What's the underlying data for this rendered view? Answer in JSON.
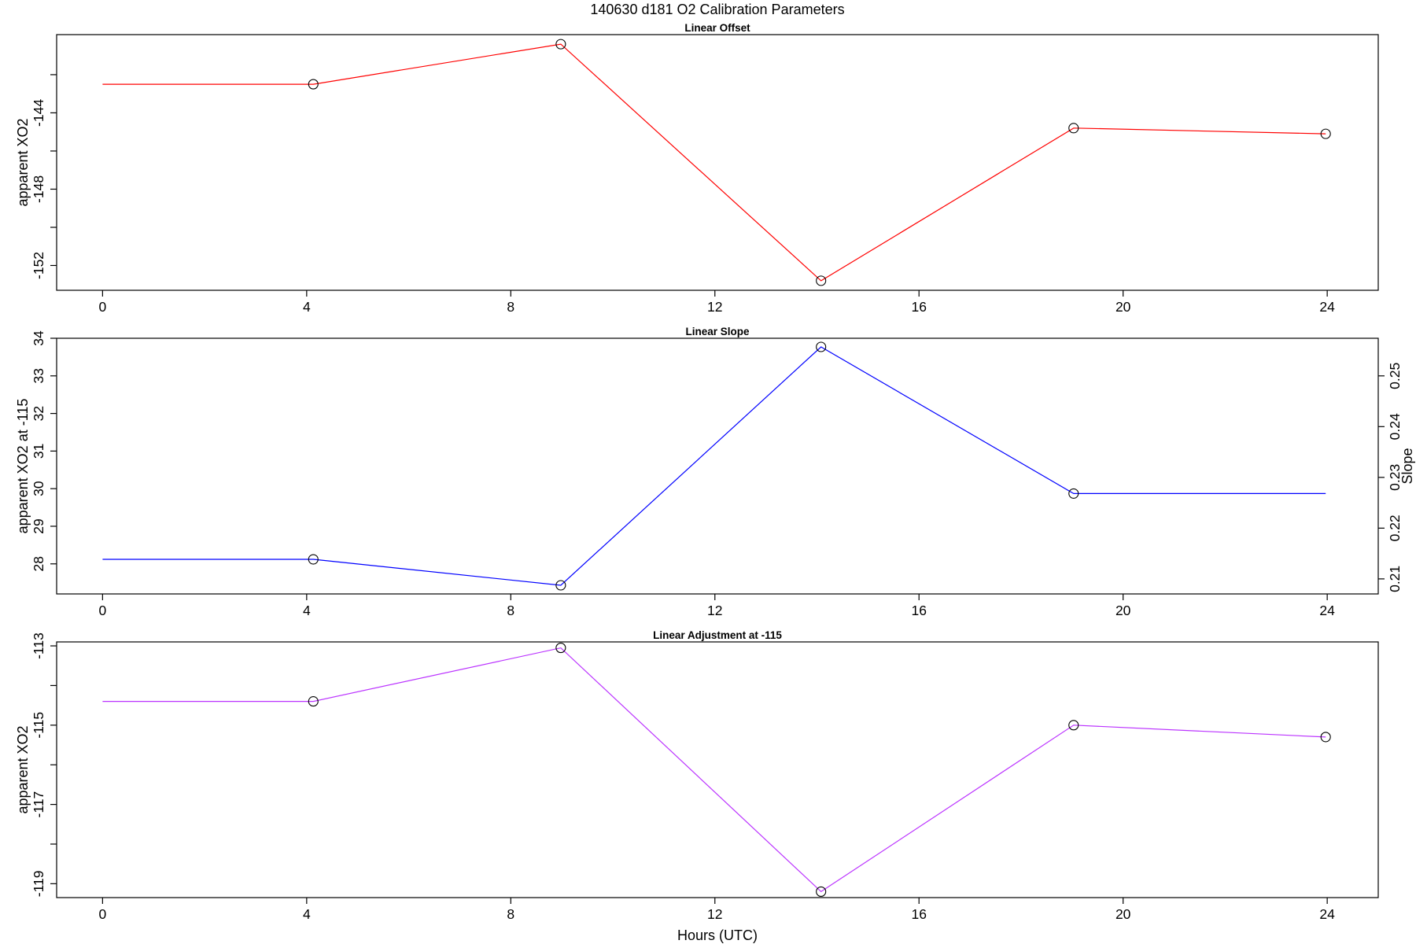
{
  "title": "140630   d181   O2 Calibration Parameters",
  "xlabel": "Hours (UTC)",
  "chart_data": [
    {
      "type": "line",
      "title": "Linear Offset",
      "ylabel": "apparent XO2",
      "xlim": [
        -0.9,
        25.0
      ],
      "ylim": [
        -153.3,
        -139.9
      ],
      "xticks": [
        0,
        4,
        8,
        12,
        16,
        20,
        24
      ],
      "yticks": [
        -152,
        -148,
        -144
      ],
      "ytick_labels": [
        "-152",
        "-148",
        "-144"
      ],
      "yticks_minor": [
        -150,
        -146,
        -142
      ],
      "color": "#ff0000",
      "x": [
        0,
        4.13,
        8.98,
        14.08,
        19.03,
        23.97
      ],
      "y": [
        -142.5,
        -142.5,
        -140.4,
        -152.8,
        -144.8,
        -145.1
      ],
      "markers": [
        false,
        true,
        true,
        true,
        true,
        true
      ]
    },
    {
      "type": "line",
      "title": "Linear Slope",
      "ylabel": "apparent XO2 at -115",
      "ylabel_right": "Slope",
      "xlim": [
        -0.9,
        25.0
      ],
      "ylim": [
        27.2,
        34.0
      ],
      "xticks": [
        0,
        4,
        8,
        12,
        16,
        20,
        24
      ],
      "yticks": [
        28,
        29,
        30,
        31,
        32,
        33,
        34
      ],
      "ytick_labels": [
        "28",
        "29",
        "30",
        "31",
        "32",
        "33",
        "34"
      ],
      "yticks_right": [
        0.21,
        0.22,
        0.23,
        0.24,
        0.25
      ],
      "yticks_right_labels": [
        "0.21",
        "0.22",
        "0.23",
        "0.24",
        "0.25"
      ],
      "yticks_right_pos": [
        27.6,
        28.95,
        30.3,
        31.65,
        33.0
      ],
      "color": "#0000ff",
      "x": [
        0,
        4.13,
        8.98,
        14.08,
        19.03,
        23.97
      ],
      "y": [
        28.12,
        28.12,
        27.43,
        33.77,
        29.87,
        29.87
      ],
      "markers": [
        false,
        true,
        true,
        true,
        true,
        false
      ]
    },
    {
      "type": "line",
      "title": "Linear Adjustment at -115",
      "ylabel": "apparent XO2",
      "xlim": [
        -0.9,
        25.0
      ],
      "ylim": [
        -119.35,
        -112.9
      ],
      "xticks": [
        0,
        4,
        8,
        12,
        16,
        20,
        24
      ],
      "yticks": [
        -119,
        -117,
        -115,
        -113
      ],
      "ytick_labels": [
        "-119",
        "-117",
        "-115",
        "-113"
      ],
      "yticks_minor": [
        -118,
        -116,
        -114
      ],
      "color": "#bb33ff",
      "x": [
        0,
        4.13,
        8.98,
        14.08,
        19.03,
        23.97
      ],
      "y": [
        -114.4,
        -114.4,
        -113.05,
        -119.2,
        -115.0,
        -115.3
      ],
      "markers": [
        false,
        true,
        true,
        true,
        true,
        true
      ]
    }
  ]
}
